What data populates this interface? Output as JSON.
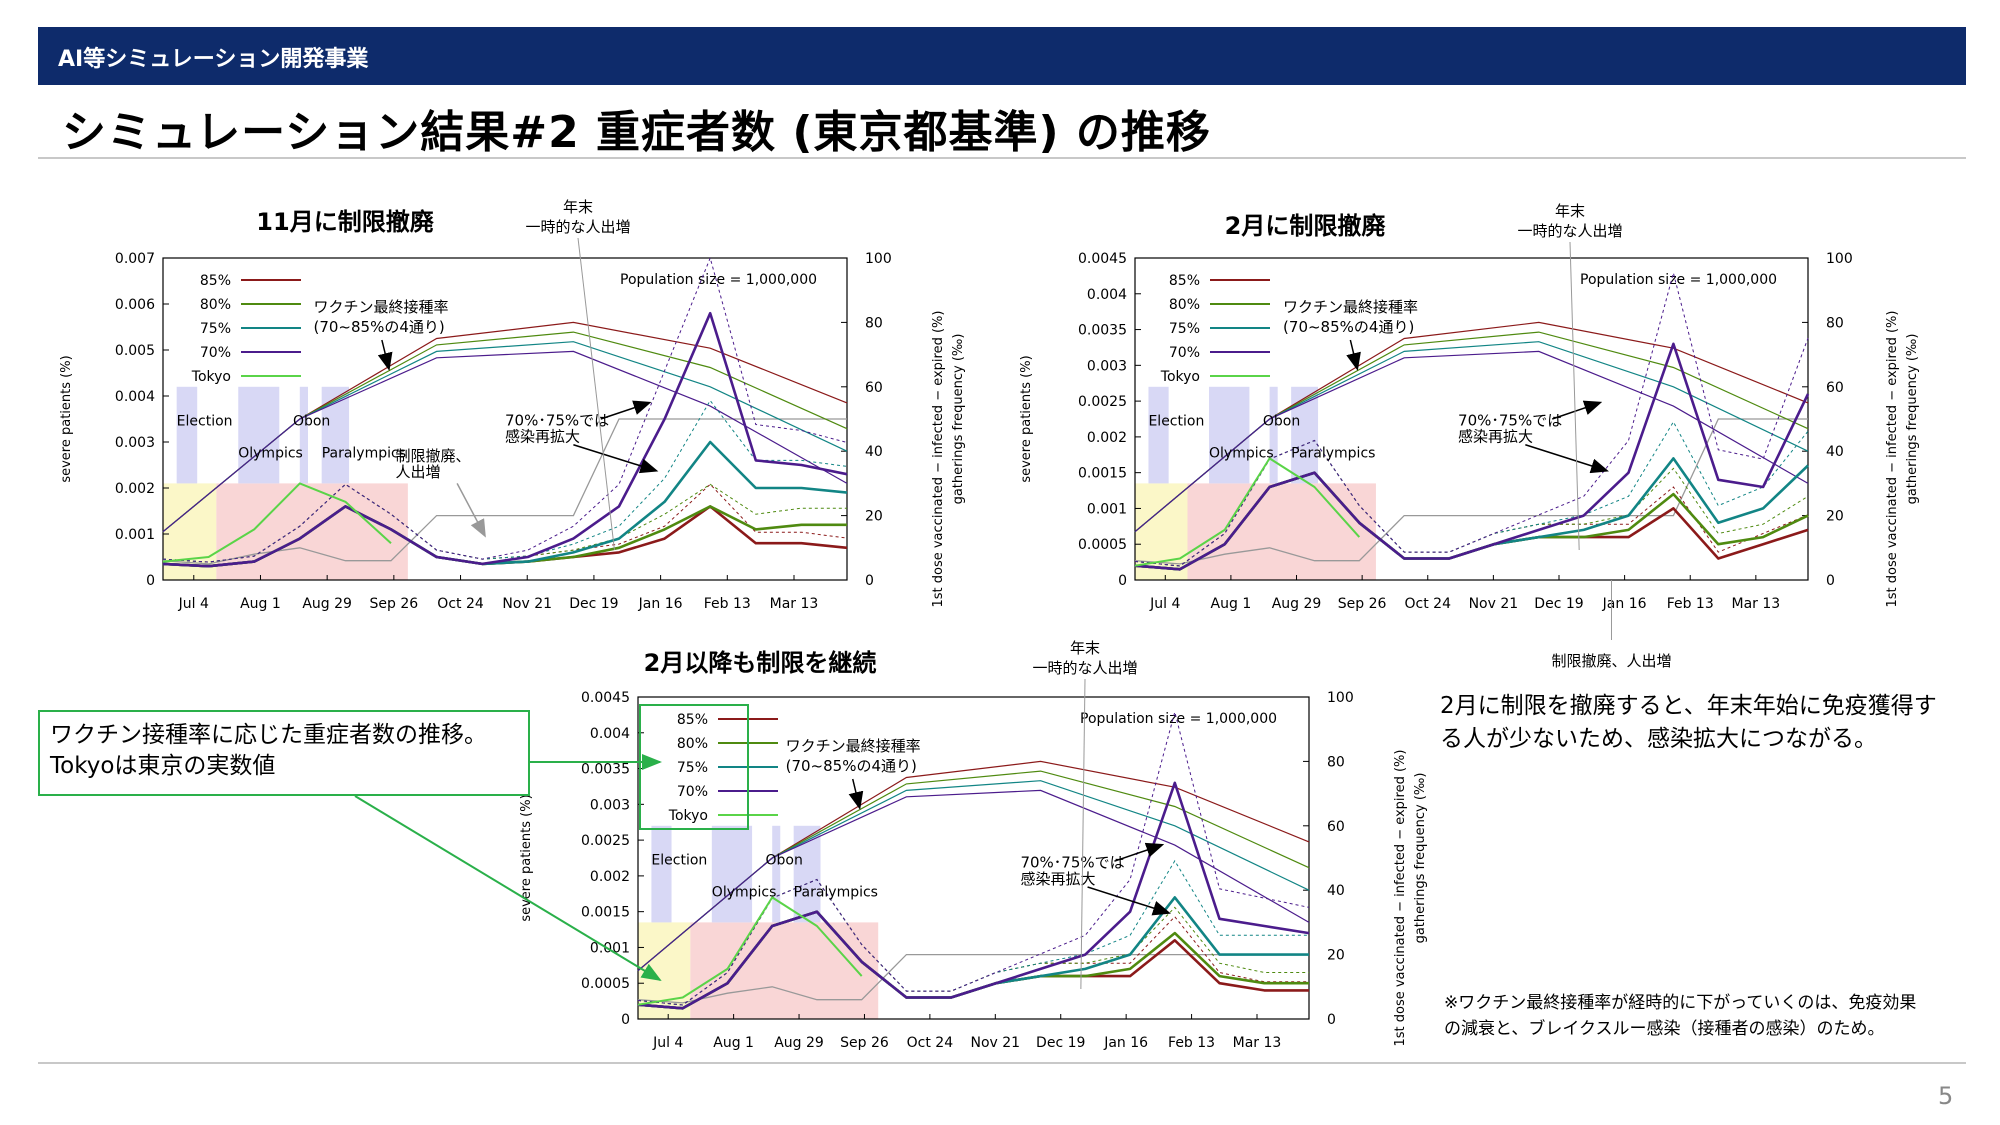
{
  "header": {
    "label": "AI等シミュレーション開発事業"
  },
  "page": {
    "title": "シミュレーション結果#2 重症者数 (東京都基準) の推移",
    "number": "5"
  },
  "callout": {
    "line1": "ワクチン接種率に応じた重症者数の推移。",
    "line2": "Tokyoは東京の実数値"
  },
  "notes": {
    "main": "2月に制限を撤廃すると、年末年始に免疫獲得する人が少ないため、感染拡大につながる。",
    "footnote_line1": "※ワクチン最終接種率が経時的に下がっていくのは、免疫効果",
    "footnote_line2": "の減衰と、ブレイクスルー感染（接種者の感染）のため。"
  },
  "colors": {
    "s85": "#8b1a1a",
    "s80": "#4f8a10",
    "s75": "#128585",
    "s70": "#4b1c8c",
    "tokyo": "#5ad448",
    "header": "#0e2b6b",
    "election": "#d8d8f5",
    "period": "#f9d6d6",
    "yellow": "#fbf7c8"
  },
  "chart_data": [
    {
      "type": "line",
      "title": "11月に制限撤廃",
      "annotation_top": [
        "年末",
        "一時的な人出増"
      ],
      "ylabel": "severe patients (%)",
      "y2label": [
        "1st dose vaccinated − infected − expired (%)",
        "gatherings frequency (‰)"
      ],
      "population": "Population size = 1,000,000",
      "ylim": [
        0,
        0.007
      ],
      "yticks": [
        "0",
        "0.001",
        "0.002",
        "0.003",
        "0.004",
        "0.005",
        "0.006",
        "0.007"
      ],
      "y2ticks": [
        "0",
        "20",
        "40",
        "60",
        "80",
        "100"
      ],
      "xticks": [
        "Jul 4",
        "Aug 1",
        "Aug 29",
        "Sep 26",
        "Oct 24",
        "Nov 21",
        "Dec 19",
        "Jan 16",
        "Feb 13",
        "Mar 13"
      ],
      "legend": [
        "85%",
        "80%",
        "75%",
        "70%",
        "Tokyo"
      ],
      "events": [
        "Election",
        "Olympics",
        "Obon",
        "Paralympics"
      ],
      "labels": {
        "vaccine": [
          "ワクチン最終接種率",
          "(70~85%の4通り)"
        ],
        "lift": [
          "制限撤廃、",
          "人出増"
        ],
        "resurge": [
          "70%･75%では",
          "感染再拡大"
        ]
      },
      "series": [
        {
          "name": "85%",
          "values": [
            0.00035,
            0.0003,
            0.0004,
            0.0009,
            0.0016,
            0.0011,
            0.0005,
            0.00035,
            0.0004,
            0.0005,
            0.0006,
            0.0009,
            0.0016,
            0.0008,
            0.0008,
            0.0007
          ]
        },
        {
          "name": "80%",
          "values": [
            0.00035,
            0.0003,
            0.0004,
            0.0009,
            0.0016,
            0.0011,
            0.0005,
            0.00035,
            0.0004,
            0.0005,
            0.0007,
            0.0011,
            0.0016,
            0.0011,
            0.0012,
            0.0012
          ]
        },
        {
          "name": "75%",
          "values": [
            0.00035,
            0.0003,
            0.0004,
            0.0009,
            0.0016,
            0.0011,
            0.0005,
            0.00035,
            0.0004,
            0.0006,
            0.0009,
            0.0017,
            0.003,
            0.002,
            0.002,
            0.0019
          ]
        },
        {
          "name": "70%",
          "values": [
            0.00035,
            0.0003,
            0.0004,
            0.0009,
            0.0016,
            0.0011,
            0.0005,
            0.00035,
            0.0005,
            0.0009,
            0.0016,
            0.0035,
            0.0058,
            0.0026,
            0.0025,
            0.0023
          ]
        },
        {
          "name": "Tokyo",
          "values": [
            0.0004,
            0.0005,
            0.0011,
            0.0021,
            0.0017,
            0.0008,
            null,
            null,
            null,
            null,
            null,
            null,
            null,
            null,
            null,
            null
          ]
        }
      ]
    },
    {
      "type": "line",
      "title": "2月に制限撤廃",
      "annotation_top": [
        "年末",
        "一時的な人出増"
      ],
      "annotation_bottom": "制限撤廃、人出増",
      "ylabel": "severe patients (%)",
      "y2label": [
        "1st dose vaccinated − infected − expired (%)",
        "gatherings frequency (‰)"
      ],
      "population": "Population size = 1,000,000",
      "ylim": [
        0,
        0.0045
      ],
      "yticks": [
        "0",
        "0.0005",
        "0.001",
        "0.0015",
        "0.002",
        "0.0025",
        "0.003",
        "0.0035",
        "0.004",
        "0.0045"
      ],
      "y2ticks": [
        "0",
        "20",
        "40",
        "60",
        "80",
        "100"
      ],
      "xticks": [
        "Jul 4",
        "Aug 1",
        "Aug 29",
        "Sep 26",
        "Oct 24",
        "Nov 21",
        "Dec 19",
        "Jan 16",
        "Feb 13",
        "Mar 13"
      ],
      "legend": [
        "85%",
        "80%",
        "75%",
        "70%",
        "Tokyo"
      ],
      "events": [
        "Election",
        "Olympics",
        "Obon",
        "Paralympics"
      ],
      "labels": {
        "vaccine": [
          "ワクチン最終接種率",
          "(70~85%の4通り)"
        ],
        "resurge": [
          "70%･75%では",
          "感染再拡大"
        ]
      },
      "series": [
        {
          "name": "85%",
          "values": [
            0.0002,
            0.00015,
            0.0005,
            0.0013,
            0.0015,
            0.0008,
            0.0003,
            0.0003,
            0.0005,
            0.0006,
            0.0006,
            0.0006,
            0.001,
            0.0003,
            0.0005,
            0.0007
          ]
        },
        {
          "name": "80%",
          "values": [
            0.0002,
            0.00015,
            0.0005,
            0.0013,
            0.0015,
            0.0008,
            0.0003,
            0.0003,
            0.0005,
            0.0006,
            0.0006,
            0.0007,
            0.0012,
            0.0005,
            0.0006,
            0.0009
          ]
        },
        {
          "name": "75%",
          "values": [
            0.0002,
            0.00015,
            0.0005,
            0.0013,
            0.0015,
            0.0008,
            0.0003,
            0.0003,
            0.0005,
            0.0006,
            0.0007,
            0.0009,
            0.0017,
            0.0008,
            0.001,
            0.0016
          ]
        },
        {
          "name": "70%",
          "values": [
            0.0002,
            0.00015,
            0.0005,
            0.0013,
            0.0015,
            0.0008,
            0.0003,
            0.0003,
            0.0005,
            0.0007,
            0.0009,
            0.0015,
            0.0033,
            0.0014,
            0.0013,
            0.0026
          ]
        },
        {
          "name": "Tokyo",
          "values": [
            0.0002,
            0.0003,
            0.0007,
            0.0017,
            0.0013,
            0.0006,
            null,
            null,
            null,
            null,
            null,
            null,
            null,
            null,
            null,
            null
          ]
        }
      ]
    },
    {
      "type": "line",
      "title": "2月以降も制限を継続",
      "annotation_top": [
        "年末",
        "一時的な人出増"
      ],
      "ylabel": "severe patients (%)",
      "y2label": [
        "1st dose vaccinated − infected − expired (%)",
        "gatherings frequency (‰)"
      ],
      "population": "Population size = 1,000,000",
      "ylim": [
        0,
        0.0045
      ],
      "yticks": [
        "0",
        "0.0005",
        "0.001",
        "0.0015",
        "0.002",
        "0.0025",
        "0.003",
        "0.0035",
        "0.004",
        "0.0045"
      ],
      "y2ticks": [
        "0",
        "20",
        "40",
        "60",
        "80",
        "100"
      ],
      "xticks": [
        "Jul 4",
        "Aug 1",
        "Aug 29",
        "Sep 26",
        "Oct 24",
        "Nov 21",
        "Dec 19",
        "Jan 16",
        "Feb 13",
        "Mar 13"
      ],
      "legend": [
        "85%",
        "80%",
        "75%",
        "70%",
        "Tokyo"
      ],
      "events": [
        "Election",
        "Olympics",
        "Obon",
        "Paralympics"
      ],
      "labels": {
        "vaccine": [
          "ワクチン最終接種率",
          "(70~85%の4通り)"
        ],
        "resurge": [
          "70%･75%では",
          "感染再拡大"
        ]
      },
      "series": [
        {
          "name": "85%",
          "values": [
            0.0002,
            0.00015,
            0.0005,
            0.0013,
            0.0015,
            0.0008,
            0.0003,
            0.0003,
            0.0005,
            0.0006,
            0.0006,
            0.0006,
            0.0011,
            0.0005,
            0.0004,
            0.0004
          ]
        },
        {
          "name": "80%",
          "values": [
            0.0002,
            0.00015,
            0.0005,
            0.0013,
            0.0015,
            0.0008,
            0.0003,
            0.0003,
            0.0005,
            0.0006,
            0.0006,
            0.0007,
            0.0012,
            0.0006,
            0.0005,
            0.0005
          ]
        },
        {
          "name": "75%",
          "values": [
            0.0002,
            0.00015,
            0.0005,
            0.0013,
            0.0015,
            0.0008,
            0.0003,
            0.0003,
            0.0005,
            0.0006,
            0.0007,
            0.0009,
            0.0017,
            0.0009,
            0.0009,
            0.0009
          ]
        },
        {
          "name": "70%",
          "values": [
            0.0002,
            0.00015,
            0.0005,
            0.0013,
            0.0015,
            0.0008,
            0.0003,
            0.0003,
            0.0005,
            0.0007,
            0.0009,
            0.0015,
            0.0033,
            0.0014,
            0.0013,
            0.0012
          ]
        },
        {
          "name": "Tokyo",
          "values": [
            0.0002,
            0.0003,
            0.0007,
            0.0017,
            0.0013,
            0.0006,
            null,
            null,
            null,
            null,
            null,
            null,
            null,
            null,
            null,
            null
          ]
        }
      ]
    }
  ]
}
